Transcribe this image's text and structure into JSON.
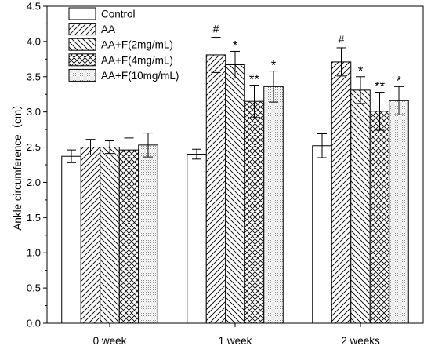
{
  "chart_data": {
    "type": "bar",
    "categories": [
      "0 week",
      "1 week",
      "2 weeks"
    ],
    "ylabel": "Ankle circumference（cm）",
    "xlabel": "",
    "title": "",
    "ylim": [
      0,
      4.5
    ],
    "yticks": [
      0.0,
      0.5,
      1.0,
      1.5,
      2.0,
      2.5,
      3.0,
      3.5,
      4.0,
      4.5
    ],
    "legend_position": "top-left",
    "series": [
      {
        "name": "Control",
        "pattern": "none",
        "values": [
          2.37,
          2.4,
          2.52
        ],
        "errors": [
          0.09,
          0.07,
          0.17
        ],
        "annotations": [
          "",
          "",
          ""
        ]
      },
      {
        "name": "AA",
        "pattern": "forward-diagonal",
        "values": [
          2.5,
          3.81,
          3.71
        ],
        "errors": [
          0.11,
          0.25,
          0.2
        ],
        "annotations": [
          "",
          "#",
          "#"
        ]
      },
      {
        "name": "AA+F(2mg/mL)",
        "pattern": "backward-diagonal",
        "values": [
          2.5,
          3.67,
          3.31
        ],
        "errors": [
          0.09,
          0.19,
          0.19
        ],
        "annotations": [
          "",
          "*",
          "*"
        ]
      },
      {
        "name": "AA+F(4mg/mL)",
        "pattern": "crosshatch",
        "values": [
          2.46,
          3.15,
          3.01
        ],
        "errors": [
          0.17,
          0.23,
          0.27
        ],
        "annotations": [
          "",
          "**",
          "**"
        ]
      },
      {
        "name": "AA+F(10mg/mL)",
        "pattern": "dots",
        "values": [
          2.53,
          3.36,
          3.16
        ],
        "errors": [
          0.17,
          0.22,
          0.2
        ],
        "annotations": [
          "",
          "*",
          "*"
        ]
      }
    ]
  }
}
